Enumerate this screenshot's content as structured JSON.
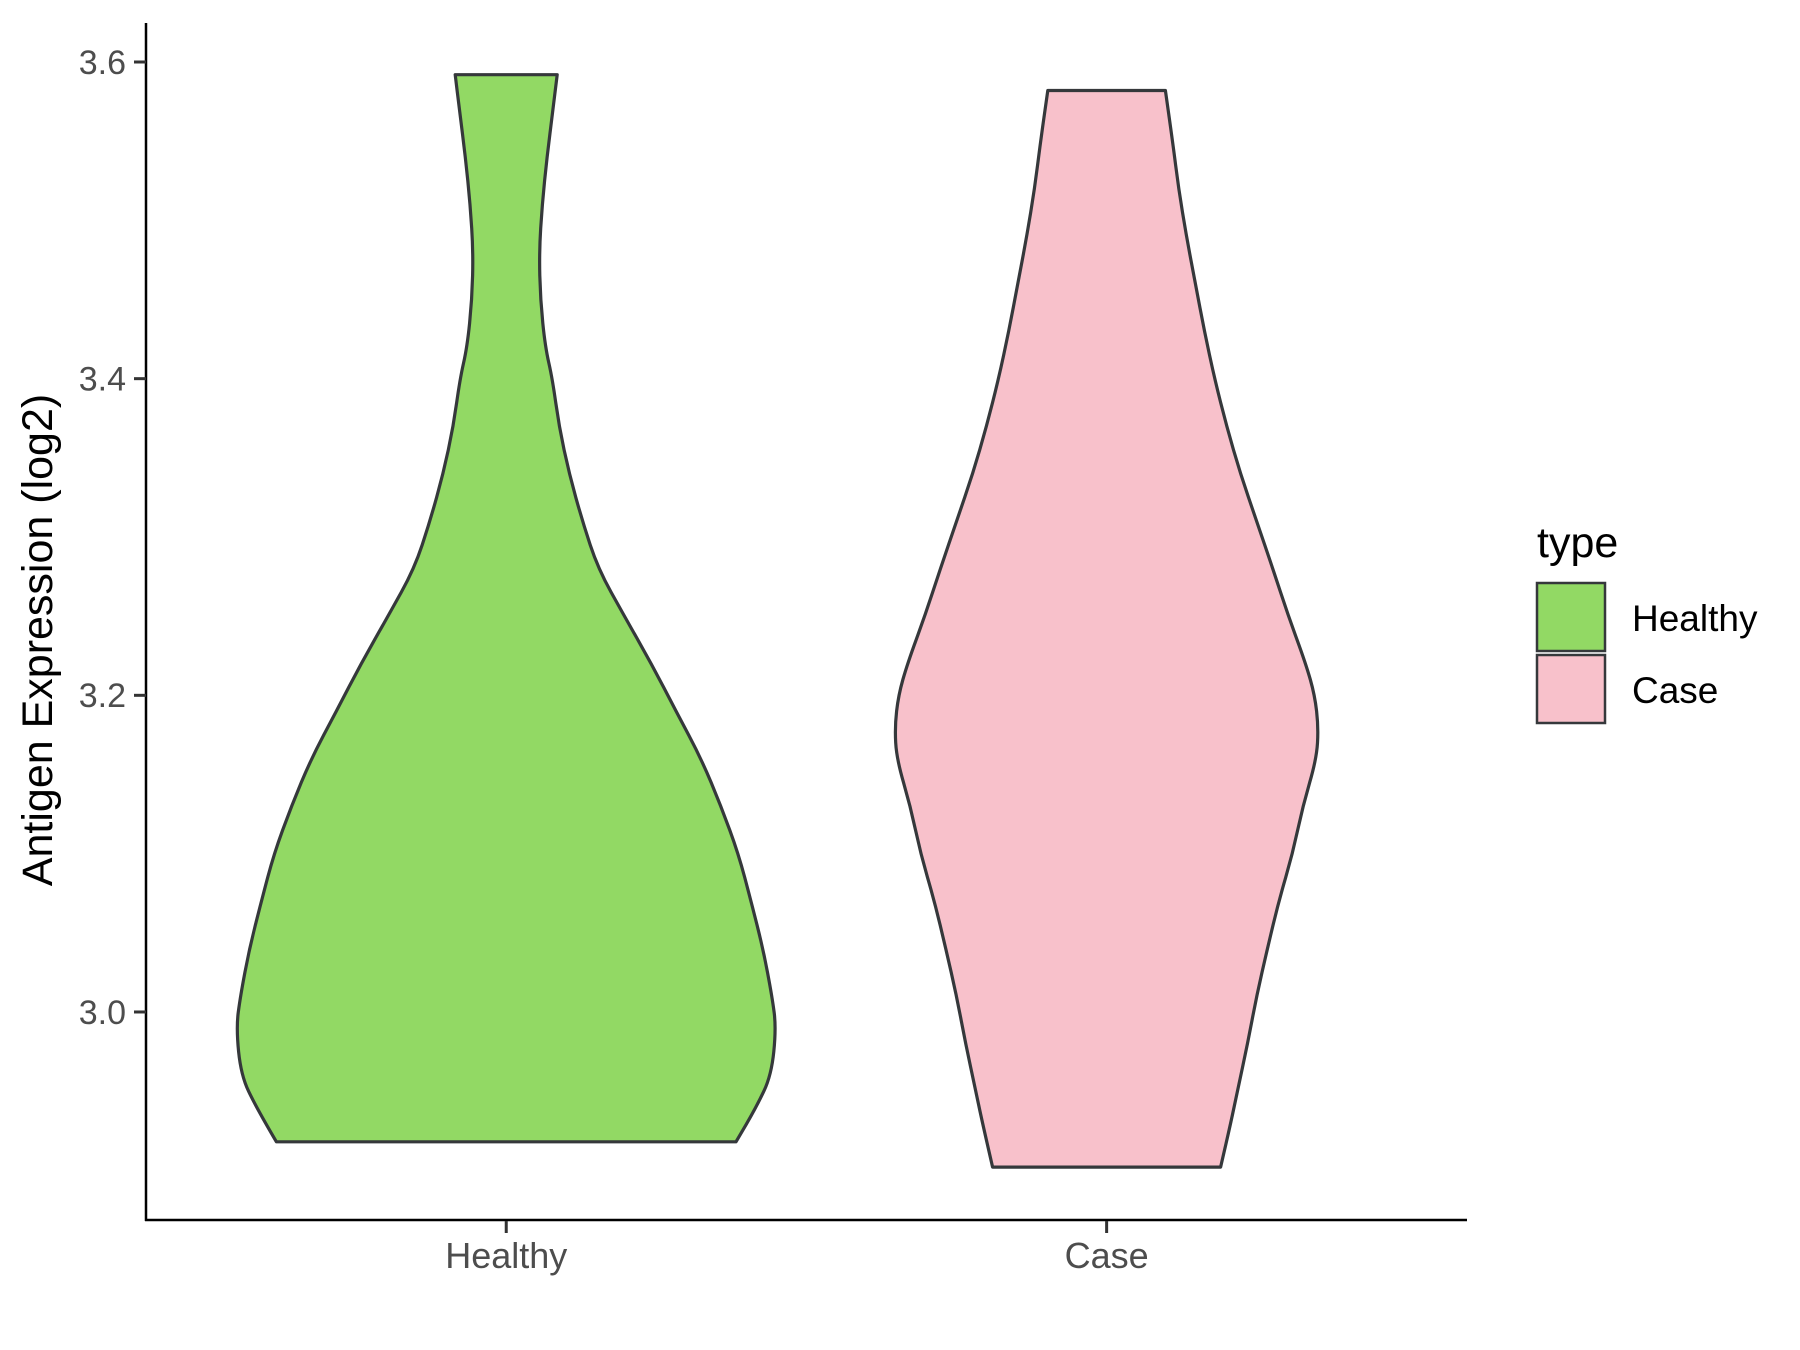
{
  "chart_data": {
    "type": "violin",
    "title": "",
    "xlabel": "",
    "ylabel": "Antigen Expression (log2)",
    "categories": [
      "Healthy",
      "Case"
    ],
    "x_tick_labels": [
      "Healthy",
      "Case"
    ],
    "y_ticks": [
      {
        "label": "3.0",
        "value": 3.0
      },
      {
        "label": "3.2",
        "value": 3.2
      },
      {
        "label": "3.4",
        "value": 3.4
      },
      {
        "label": "3.6",
        "value": 3.6
      }
    ],
    "ylim": [
      2.87,
      3.62
    ],
    "grid": false,
    "legend": {
      "title": "type",
      "position": "right",
      "entries": [
        {
          "label": "Healthy",
          "color": "#92D964"
        },
        {
          "label": "Case",
          "color": "#F8C1CB"
        }
      ]
    },
    "series": [
      {
        "name": "Healthy",
        "category_index": 0,
        "fill": "#92D964",
        "value_range": [
          2.918,
          3.592
        ],
        "half_width_unit": "fraction of category spacing",
        "profile": [
          [
            3.592,
            0.085
          ],
          [
            3.57,
            0.078
          ],
          [
            3.54,
            0.068
          ],
          [
            3.51,
            0.06
          ],
          [
            3.48,
            0.055
          ],
          [
            3.45,
            0.057
          ],
          [
            3.42,
            0.065
          ],
          [
            3.4,
            0.077
          ],
          [
            3.37,
            0.088
          ],
          [
            3.34,
            0.105
          ],
          [
            3.31,
            0.127
          ],
          [
            3.28,
            0.153
          ],
          [
            3.25,
            0.197
          ],
          [
            3.22,
            0.242
          ],
          [
            3.19,
            0.283
          ],
          [
            3.16,
            0.325
          ],
          [
            3.13,
            0.358
          ],
          [
            3.1,
            0.387
          ],
          [
            3.07,
            0.408
          ],
          [
            3.04,
            0.428
          ],
          [
            3.01,
            0.443
          ],
          [
            2.99,
            0.45
          ],
          [
            2.96,
            0.442
          ],
          [
            2.94,
            0.417
          ],
          [
            2.918,
            0.383
          ]
        ]
      },
      {
        "name": "Case",
        "category_index": 1,
        "fill": "#F8C1CB",
        "value_range": [
          2.902,
          3.582
        ],
        "half_width_unit": "fraction of category spacing",
        "profile": [
          [
            3.582,
            0.098
          ],
          [
            3.55,
            0.11
          ],
          [
            3.52,
            0.12
          ],
          [
            3.49,
            0.133
          ],
          [
            3.46,
            0.148
          ],
          [
            3.43,
            0.163
          ],
          [
            3.4,
            0.18
          ],
          [
            3.37,
            0.2
          ],
          [
            3.34,
            0.223
          ],
          [
            3.31,
            0.25
          ],
          [
            3.28,
            0.277
          ],
          [
            3.25,
            0.303
          ],
          [
            3.22,
            0.332
          ],
          [
            3.2,
            0.347
          ],
          [
            3.18,
            0.353
          ],
          [
            3.16,
            0.35
          ],
          [
            3.13,
            0.327
          ],
          [
            3.1,
            0.31
          ],
          [
            3.07,
            0.287
          ],
          [
            3.04,
            0.268
          ],
          [
            3.01,
            0.25
          ],
          [
            2.98,
            0.235
          ],
          [
            2.95,
            0.218
          ],
          [
            2.93,
            0.207
          ],
          [
            2.902,
            0.19
          ]
        ]
      }
    ],
    "style": {
      "outline_color": "#35383B",
      "axis_line_color": "#000000",
      "tick_mark_color": "#333333",
      "tick_label_color": "#4D4D4D",
      "axis_title_color": "#000000",
      "legend_text_color": "#000000",
      "background": "#FFFFFF"
    }
  }
}
